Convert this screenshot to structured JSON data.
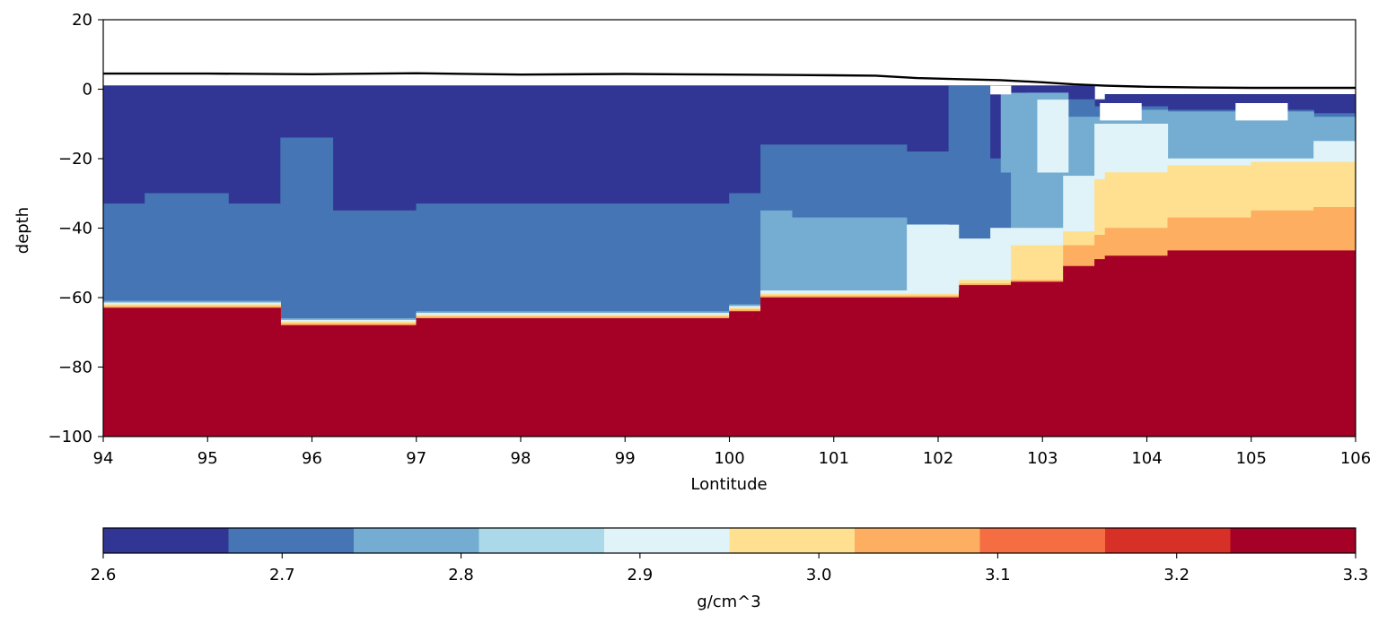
{
  "chart_data": {
    "type": "heatmap",
    "title": "",
    "xlabel": "Lontitude",
    "ylabel": "depth",
    "xlim": [
      94,
      106
    ],
    "ylim": [
      -100,
      20
    ],
    "x_ticks": [
      "94",
      "95",
      "96",
      "97",
      "98",
      "99",
      "100",
      "101",
      "102",
      "103",
      "104",
      "105",
      "106"
    ],
    "y_ticks": [
      "20",
      "0",
      "−20",
      "−40",
      "−60",
      "−80",
      "−100"
    ],
    "grid": false,
    "colorbar": {
      "label": "g/cm^3",
      "orientation": "horizontal",
      "range": [
        2.6,
        3.3
      ],
      "ticks": [
        "2.6",
        "2.7",
        "2.8",
        "2.9",
        "3.0",
        "3.1",
        "3.2",
        "3.3"
      ],
      "levels": [
        2.6,
        2.67,
        2.74,
        2.81,
        2.88,
        2.95,
        3.02,
        3.09,
        3.16,
        3.23,
        3.3
      ],
      "colors": [
        "#313695",
        "#4575b4",
        "#74add1",
        "#abd9e9",
        "#e0f3f8",
        "#fee090",
        "#fdae61",
        "#f46d43",
        "#d73027",
        "#a50026"
      ]
    },
    "topography": {
      "color": "#000000",
      "x": [
        94,
        95,
        96,
        97,
        98,
        99,
        100,
        101,
        101.4,
        101.8,
        102.2,
        102.6,
        103.0,
        103.3,
        103.6,
        104.0,
        104.5,
        105.0,
        105.5,
        106
      ],
      "y": [
        4.5,
        4.5,
        4.3,
        4.6,
        4.2,
        4.4,
        4.2,
        4.0,
        3.9,
        3.2,
        2.9,
        2.6,
        2.0,
        1.4,
        1.0,
        0.7,
        0.5,
        0.4,
        0.4,
        0.4
      ]
    },
    "layers": [
      {
        "density": 2.6,
        "x": [
          94,
          94.4,
          94.6,
          95.2,
          95.7,
          96.2,
          97,
          98,
          99,
          100,
          100.3,
          100.6,
          101,
          101.7,
          102.2,
          102.7,
          103.2,
          103.5,
          103.6,
          104.2,
          105,
          105.6,
          106
        ],
        "top": [
          1,
          1,
          1,
          1,
          1,
          1,
          1,
          1,
          1,
          1,
          1,
          1,
          1,
          1,
          1,
          1,
          1,
          -3,
          -1.5,
          -1.5,
          -1.5,
          -1.5,
          -1.5
        ],
        "bottom": [
          -33,
          -30,
          -30,
          -33,
          -14,
          -35,
          -33,
          -33,
          -33,
          -30,
          -16,
          -16,
          -16,
          -18,
          -20,
          -3,
          -3,
          -5,
          -5,
          -6,
          -6,
          -7,
          -8
        ]
      },
      {
        "density": 2.7,
        "x": [
          94,
          94.4,
          94.6,
          95.2,
          95.7,
          96.2,
          97,
          98,
          99,
          100,
          100.3,
          100.6,
          101,
          101.7,
          102.2,
          102.7,
          103.2,
          103.5,
          103.6,
          104.2,
          105,
          105.6,
          106
        ],
        "top": [
          -33,
          -30,
          -30,
          -33,
          -14,
          -35,
          -33,
          -33,
          -33,
          -30,
          -16,
          -16,
          -16,
          -18,
          -20,
          -3,
          -3,
          -5,
          -5,
          -6,
          -6,
          -7,
          -8
        ],
        "bottom": [
          -61,
          -61,
          -61,
          -61,
          -66,
          -66,
          -64,
          -64,
          -64,
          -62,
          -35,
          -37,
          -37,
          -39,
          -43,
          -24,
          -8,
          -8,
          -6,
          -6.5,
          -6.5,
          -8,
          -9
        ]
      },
      {
        "density": 2.8,
        "x": [
          94,
          94.4,
          94.6,
          95.2,
          95.7,
          96.2,
          97,
          98,
          99,
          100,
          100.3,
          100.6,
          101,
          101.7,
          102.2,
          102.7,
          103.2,
          103.5,
          103.6,
          104.2,
          105,
          105.6,
          106
        ],
        "top": [
          -61,
          -61,
          -61,
          -61,
          -66,
          -66,
          -64,
          -64,
          -64,
          -62,
          -35,
          -37,
          -37,
          -39,
          -43,
          -24,
          -8,
          -8,
          -6,
          -6.5,
          -6.5,
          -8,
          -9
        ],
        "bottom": [
          -61.5,
          -61.5,
          -61.5,
          -61.5,
          -66.5,
          -66.5,
          -64.5,
          -64.5,
          -64.5,
          -62.5,
          -58,
          -58,
          -58,
          -58,
          -40,
          -40,
          -25,
          -10,
          -10,
          -20,
          -20,
          -15,
          -9.5
        ]
      },
      {
        "density": 2.9,
        "x": [
          94,
          94.4,
          94.6,
          95.2,
          95.7,
          96.2,
          97,
          98,
          99,
          100,
          100.3,
          100.6,
          101,
          101.7,
          102.2,
          102.7,
          103.2,
          103.5,
          103.6,
          104.2,
          105,
          105.6,
          106
        ],
        "top": [
          -61.5,
          -61.5,
          -61.5,
          -61.5,
          -66.5,
          -66.5,
          -64.5,
          -64.5,
          -64.5,
          -62.5,
          -58,
          -58,
          -58,
          -58,
          -40,
          -40,
          -25,
          -10,
          -10,
          -20,
          -20,
          -15,
          -9.5
        ],
        "bottom": [
          -62,
          -62,
          -62,
          -62,
          -67,
          -67,
          -65,
          -65,
          -65,
          -63,
          -59,
          -59,
          -59,
          -59,
          -55,
          -45,
          -41,
          -26,
          -24,
          -22,
          -21,
          -21,
          -21
        ]
      },
      {
        "density": 3.0,
        "x": [
          94,
          94.4,
          94.6,
          95.2,
          95.7,
          96.2,
          97,
          98,
          99,
          100,
          100.3,
          100.6,
          101,
          101.7,
          102.2,
          102.7,
          103.2,
          103.5,
          103.6,
          104.2,
          105,
          105.6,
          106
        ],
        "top": [
          -62,
          -62,
          -62,
          -62,
          -67,
          -67,
          -65,
          -65,
          -65,
          -63,
          -59,
          -59,
          -59,
          -59,
          -55,
          -45,
          -41,
          -26,
          -24,
          -22,
          -21,
          -21,
          -21
        ],
        "bottom": [
          -62.5,
          -62.5,
          -62.5,
          -62.5,
          -67.5,
          -67.5,
          -65.5,
          -65.5,
          -65.5,
          -63.5,
          -59.5,
          -59.5,
          -59.5,
          -59.5,
          -56,
          -55,
          -45,
          -42,
          -40,
          -37,
          -35,
          -34,
          -34
        ]
      },
      {
        "density": 3.05,
        "x": [
          94,
          94.4,
          94.6,
          95.2,
          95.7,
          96.2,
          97,
          98,
          99,
          100,
          100.3,
          100.6,
          101,
          101.7,
          102.2,
          102.7,
          103.2,
          103.5,
          103.6,
          104.2,
          105,
          105.6,
          106
        ],
        "top": [
          -62.5,
          -62.5,
          -62.5,
          -62.5,
          -67.5,
          -67.5,
          -65.5,
          -65.5,
          -65.5,
          -63.5,
          -59.5,
          -59.5,
          -59.5,
          -59.5,
          -56,
          -55,
          -45,
          -42,
          -40,
          -37,
          -35,
          -34,
          -34
        ],
        "bottom": [
          -63,
          -63,
          -63,
          -63,
          -68,
          -68,
          -66,
          -66,
          -66,
          -64,
          -60,
          -60,
          -60,
          -60,
          -56.5,
          -55.5,
          -51,
          -49,
          -48,
          -46.5,
          -46.5,
          -46.5,
          -46.5
        ]
      },
      {
        "density": 3.3,
        "x": [
          94,
          94.4,
          94.6,
          95.2,
          95.7,
          96.2,
          97,
          98,
          99,
          100,
          100.3,
          100.6,
          101,
          101.7,
          102.2,
          102.7,
          103.2,
          103.5,
          103.6,
          104.2,
          105,
          105.6,
          106
        ],
        "top": [
          -63,
          -63,
          -63,
          -63,
          -68,
          -68,
          -66,
          -66,
          -66,
          -64,
          -60,
          -60,
          -60,
          -60,
          -56.5,
          -55.5,
          -51,
          -49,
          -48,
          -46.5,
          -46.5,
          -46.5,
          -46.5
        ],
        "bottom": [
          -100,
          -100,
          -100,
          -100,
          -100,
          -100,
          -100,
          -100,
          -100,
          -100,
          -100,
          -100,
          -100,
          -100,
          -100,
          -100,
          -100,
          -100,
          -100,
          -100,
          -100,
          -100,
          -100
        ]
      }
    ],
    "blocks": [
      {
        "density": 2.7,
        "x": [
          102.1,
          102.5
        ],
        "top": 1,
        "bottom": -43
      },
      {
        "density": 2.8,
        "x": [
          102.6,
          103.25
        ],
        "top": -1,
        "bottom": -24
      },
      {
        "density": 2.88,
        "x": [
          102.95,
          103.25
        ],
        "top": -3,
        "bottom": -24
      },
      {
        "density": 2.6,
        "x": [
          102.7,
          102.85
        ],
        "top": 1,
        "bottom": -1
      },
      {
        "density": 2.88,
        "x": [
          101.7,
          102.2
        ],
        "top": -39,
        "bottom": -58
      }
    ],
    "gaps": [
      {
        "x": [
          103.55,
          103.95
        ],
        "top": -4,
        "bottom": -9
      },
      {
        "x": [
          104.85,
          105.35
        ],
        "top": -4,
        "bottom": -9
      },
      {
        "x": [
          102.5,
          102.7
        ],
        "top": 1,
        "bottom": -1.5
      }
    ]
  }
}
